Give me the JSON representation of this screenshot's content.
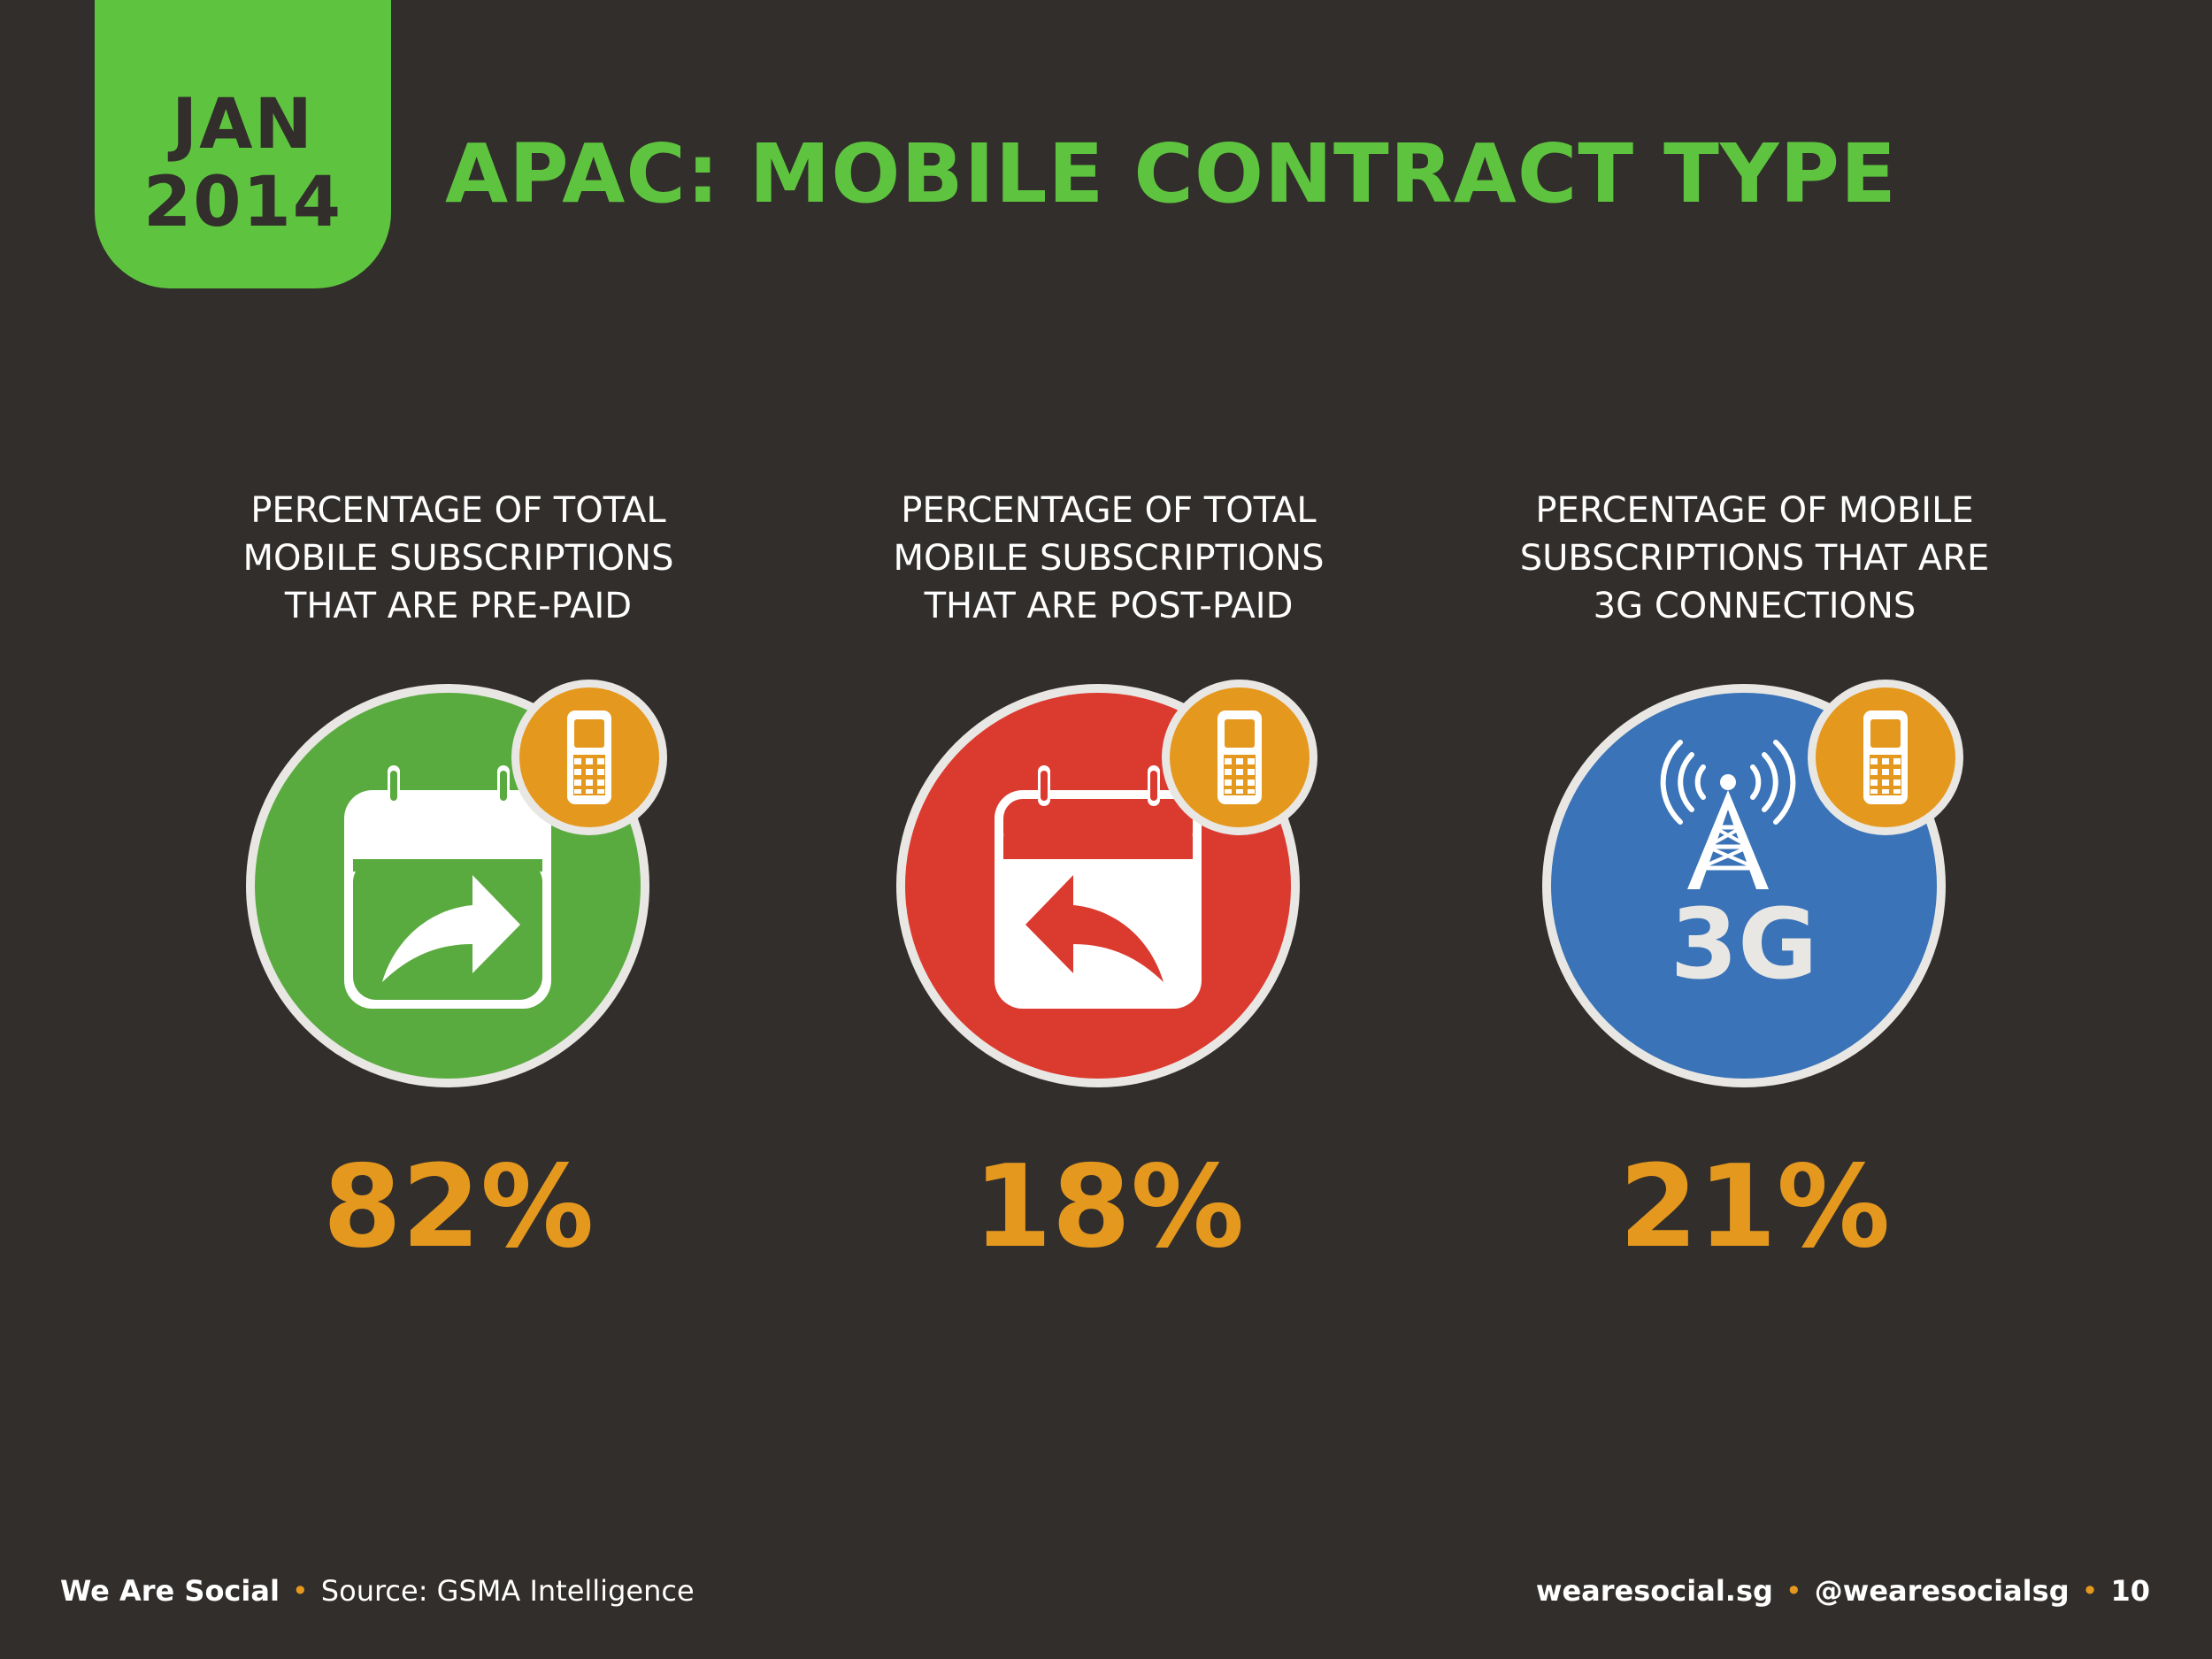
{
  "header": {
    "month": "JAN",
    "year": "2014",
    "title": "APAC: MOBILE CONTRACT TYPE"
  },
  "stats": [
    {
      "desc": [
        "PERCENTAGE OF TOTAL",
        "MOBILE SUBSCRIPTIONS",
        "THAT ARE PRE-PAID"
      ],
      "value": "82%",
      "icon": "calendar-forward-arrow-icon",
      "color": "#5aab3f"
    },
    {
      "desc": [
        "PERCENTAGE OF TOTAL",
        "MOBILE SUBSCRIPTIONS",
        "THAT ARE POST-PAID"
      ],
      "value": "18%",
      "icon": "calendar-back-arrow-icon",
      "color": "#db3a2f"
    },
    {
      "desc": [
        "PERCENTAGE OF MOBILE",
        "SUBSCRIPTIONS THAT ARE",
        "3G CONNECTIONS"
      ],
      "value": "21%",
      "icon": "3g-tower-icon",
      "icon_text": "3G",
      "color": "#3a73b7"
    }
  ],
  "badge": {
    "icon": "mobile-phone-icon",
    "color": "#e5981e"
  },
  "footer": {
    "brand": "We Are Social",
    "source": "Source: GSMA Intelligence",
    "website": "wearesocial.sg",
    "handle": "@wearesocialsg",
    "page_number": "10",
    "separator": "•"
  },
  "colors": {
    "background": "#322e2b",
    "accent_green": "#5ec43f",
    "value_orange": "#e5981e"
  }
}
